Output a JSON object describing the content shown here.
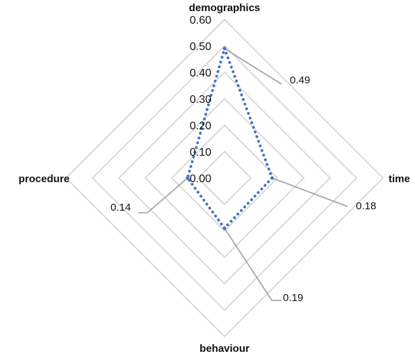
{
  "chart_data": {
    "type": "radar",
    "categories": [
      "demographics",
      "time",
      "behaviour",
      "procedure"
    ],
    "values": [
      0.49,
      0.18,
      0.19,
      0.14
    ],
    "data_labels": [
      "0.49",
      "0.18",
      "0.19",
      "0.14"
    ],
    "ticks": [
      "0.00",
      "0.10",
      "0.20",
      "0.30",
      "0.40",
      "0.50",
      "0.60"
    ],
    "rlim": [
      0,
      0.6
    ],
    "grid": true,
    "legend": "none",
    "series_style": "dotted",
    "colors": {
      "series": "#4472C4",
      "grid": "#d9d9d9",
      "leader": "#a6a6a6"
    }
  }
}
